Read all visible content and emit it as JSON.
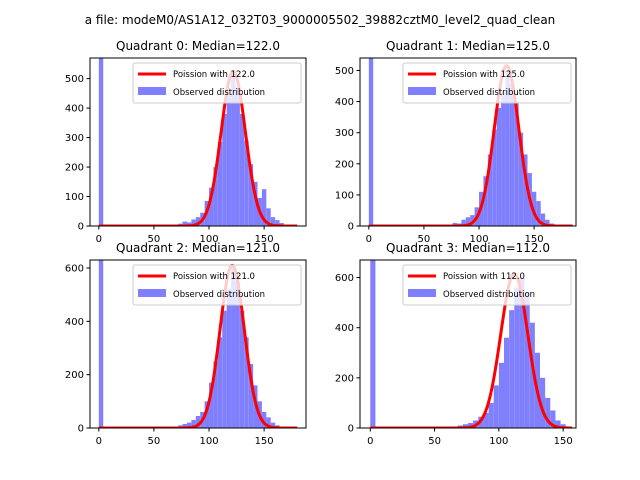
{
  "figure_title": "a file: modeM0/AS1A12_032T03_9000005502_39882cztM0_level2_quad_clean",
  "chart_data": [
    {
      "type": "bar",
      "title": "Quadrant 0: Median=122.0",
      "median": 122,
      "xlim": [
        -8,
        188
      ],
      "ylim": [
        0,
        570
      ],
      "xticks": [
        0,
        50,
        100,
        150
      ],
      "yticks": [
        0,
        100,
        200,
        300,
        400,
        500
      ],
      "legend": {
        "position": "top-right",
        "line_label": "Poission with 122.0",
        "hist_label": "Observed distribution"
      },
      "bin_width": 4,
      "hist": [
        [
          0,
          570
        ],
        [
          72,
          8
        ],
        [
          76,
          15
        ],
        [
          80,
          12
        ],
        [
          84,
          22
        ],
        [
          88,
          30
        ],
        [
          92,
          45
        ],
        [
          96,
          85
        ],
        [
          100,
          130
        ],
        [
          104,
          200
        ],
        [
          108,
          285
        ],
        [
          112,
          380
        ],
        [
          116,
          450
        ],
        [
          120,
          530
        ],
        [
          124,
          470
        ],
        [
          128,
          380
        ],
        [
          132,
          290
        ],
        [
          136,
          210
        ],
        [
          140,
          150
        ],
        [
          144,
          95
        ],
        [
          148,
          125
        ],
        [
          152,
          60
        ],
        [
          156,
          30
        ],
        [
          160,
          20
        ],
        [
          164,
          10
        ],
        [
          168,
          5
        ]
      ],
      "fit_peak": 525,
      "fit_range": [
        0,
        180
      ]
    },
    {
      "type": "bar",
      "title": "Quadrant 1: Median=125.0",
      "median": 125,
      "xlim": [
        -8,
        188
      ],
      "ylim": [
        0,
        540
      ],
      "xticks": [
        0,
        50,
        100,
        150
      ],
      "yticks": [
        0,
        100,
        200,
        300,
        400,
        500
      ],
      "legend": {
        "position": "top-right",
        "line_label": "Poission with 125.0",
        "hist_label": "Observed distribution"
      },
      "bin_width": 4,
      "hist": [
        [
          0,
          540
        ],
        [
          76,
          10
        ],
        [
          80,
          8
        ],
        [
          84,
          20
        ],
        [
          88,
          28
        ],
        [
          92,
          35
        ],
        [
          96,
          60
        ],
        [
          100,
          110
        ],
        [
          104,
          160
        ],
        [
          108,
          230
        ],
        [
          112,
          310
        ],
        [
          116,
          380
        ],
        [
          120,
          430
        ],
        [
          124,
          500
        ],
        [
          128,
          460
        ],
        [
          132,
          400
        ],
        [
          136,
          300
        ],
        [
          140,
          230
        ],
        [
          144,
          170
        ],
        [
          148,
          110
        ],
        [
          152,
          80
        ],
        [
          156,
          40
        ],
        [
          160,
          20
        ],
        [
          164,
          8
        ]
      ],
      "fit_peak": 515,
      "fit_range": [
        0,
        185
      ]
    },
    {
      "type": "bar",
      "title": "Quadrant 2: Median=121.0",
      "median": 121,
      "xlim": [
        -8,
        188
      ],
      "ylim": [
        0,
        630
      ],
      "xticks": [
        0,
        50,
        100,
        150
      ],
      "yticks": [
        0,
        200,
        400,
        600
      ],
      "legend": {
        "position": "top-right",
        "line_label": "Poission with 121.0",
        "hist_label": "Observed distribution"
      },
      "bin_width": 4,
      "hist": [
        [
          0,
          630
        ],
        [
          72,
          10
        ],
        [
          76,
          15
        ],
        [
          80,
          20
        ],
        [
          84,
          30
        ],
        [
          88,
          45
        ],
        [
          92,
          60
        ],
        [
          96,
          100
        ],
        [
          100,
          170
        ],
        [
          104,
          250
        ],
        [
          108,
          340
        ],
        [
          112,
          440
        ],
        [
          116,
          520
        ],
        [
          120,
          600
        ],
        [
          124,
          550
        ],
        [
          128,
          440
        ],
        [
          132,
          340
        ],
        [
          136,
          240
        ],
        [
          140,
          160
        ],
        [
          144,
          100
        ],
        [
          148,
          60
        ],
        [
          152,
          40
        ],
        [
          156,
          20
        ],
        [
          160,
          10
        ],
        [
          164,
          5
        ]
      ],
      "fit_peak": 610,
      "fit_range": [
        0,
        180
      ]
    },
    {
      "type": "bar",
      "title": "Quadrant 3: Median=112.0",
      "median": 112,
      "xlim": [
        -8,
        160
      ],
      "ylim": [
        0,
        670
      ],
      "xticks": [
        0,
        50,
        100,
        150
      ],
      "yticks": [
        0,
        200,
        400,
        600
      ],
      "legend": {
        "position": "top-right",
        "line_label": "Poission with 112.0",
        "hist_label": "Observed distribution"
      },
      "bin_width": 4,
      "hist": [
        [
          0,
          670
        ],
        [
          4,
          5
        ],
        [
          8,
          3
        ],
        [
          64,
          5
        ],
        [
          68,
          10
        ],
        [
          72,
          15
        ],
        [
          76,
          20
        ],
        [
          80,
          30
        ],
        [
          84,
          45
        ],
        [
          88,
          60
        ],
        [
          92,
          100
        ],
        [
          96,
          170
        ],
        [
          100,
          260
        ],
        [
          104,
          360
        ],
        [
          108,
          470
        ],
        [
          112,
          560
        ],
        [
          116,
          600
        ],
        [
          120,
          540
        ],
        [
          124,
          420
        ],
        [
          128,
          300
        ],
        [
          132,
          200
        ],
        [
          136,
          120
        ],
        [
          140,
          70
        ],
        [
          144,
          30
        ],
        [
          148,
          15
        ]
      ],
      "fit_peak": 615,
      "fit_range": [
        0,
        157
      ]
    }
  ],
  "colors": {
    "hist": "#8080ff",
    "fit": "#ff0000",
    "axis": "#000000"
  }
}
